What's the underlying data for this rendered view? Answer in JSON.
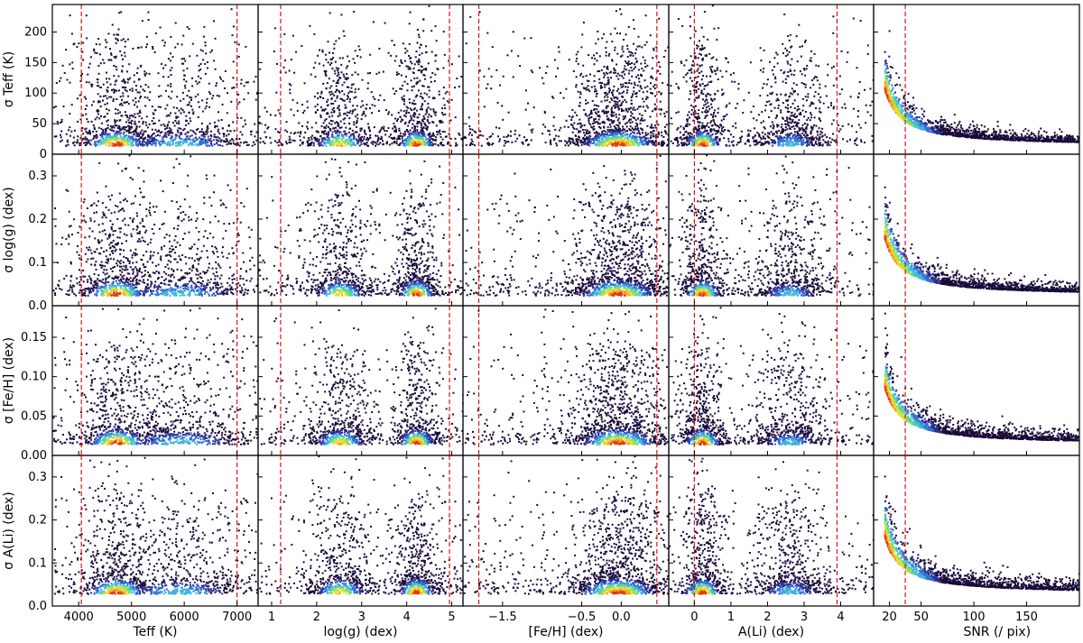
{
  "figure": {
    "description_type": "4x5 grid of 2D density (hexbin-style) scatter panels",
    "colormap": [
      "#1a0a3a",
      "#2b2f8f",
      "#2f6fd0",
      "#3fb0e0",
      "#50d0b0",
      "#9be04a",
      "#e8e030",
      "#f5a020",
      "#e03a10"
    ],
    "reference_line_color": "#e01010",
    "frame_color": "#000000"
  },
  "chart_data": {
    "type": "heatmap",
    "columns": [
      {
        "key": "teff",
        "xlabel": "Teff (K)",
        "xlim": [
          3500,
          7400
        ],
        "ticks": [
          4000,
          5000,
          6000,
          7000
        ],
        "tick_labels": [
          "4000",
          "5000",
          "6000",
          "7000"
        ],
        "ref_lines": [
          4050,
          7000
        ]
      },
      {
        "key": "logg",
        "xlabel": "log(g) (dex)",
        "xlim": [
          0.7,
          5.25
        ],
        "ticks": [
          1,
          2,
          3,
          4,
          5
        ],
        "tick_labels": [
          "1",
          "2",
          "3",
          "4",
          "5"
        ],
        "ref_lines": [
          1.2,
          4.95
        ]
      },
      {
        "key": "feh",
        "xlabel": "[Fe/H] (dex)",
        "xlim": [
          -2.0,
          0.6
        ],
        "ticks": [
          -1.5,
          -0.5,
          0.0
        ],
        "tick_labels": [
          "−1.5",
          "−0.5",
          "0.0"
        ],
        "ref_lines": [
          -1.8,
          0.45
        ]
      },
      {
        "key": "ali",
        "xlabel": "A(Li) (dex)",
        "xlim": [
          -0.7,
          4.9
        ],
        "ticks": [
          0,
          1,
          2,
          3,
          4
        ],
        "tick_labels": [
          "0",
          "1",
          "2",
          "3",
          "4"
        ],
        "ref_lines": [
          0.0,
          3.9
        ]
      },
      {
        "key": "snr",
        "xlabel": "SNR (/ pix)",
        "xlim": [
          5,
          200
        ],
        "ticks": [
          20,
          50,
          100,
          150
        ],
        "tick_labels": [
          "20",
          "50",
          "100",
          "150"
        ],
        "ref_lines": [
          35
        ]
      }
    ],
    "rows": [
      {
        "key": "sigma_teff",
        "ylabel": "σ Teff (K)",
        "ylim": [
          0,
          245
        ],
        "ticks": [
          0,
          50,
          100,
          150,
          200
        ],
        "tick_labels": [
          "0",
          "50",
          "100",
          "150",
          "200"
        ]
      },
      {
        "key": "sigma_logg",
        "ylabel": "σ log(g) (dex)",
        "ylim": [
          0,
          0.35
        ],
        "ticks": [
          0.0,
          0.1,
          0.2,
          0.3
        ],
        "tick_labels": [
          "0.0",
          "0.1",
          "0.2",
          "0.3"
        ]
      },
      {
        "key": "sigma_feh",
        "ylabel": "σ [Fe/H] (dex)",
        "ylim": [
          0,
          0.19
        ],
        "ticks": [
          0.0,
          0.05,
          0.1,
          0.15
        ],
        "tick_labels": [
          "0.00",
          "0.05",
          "0.10",
          "0.15"
        ]
      },
      {
        "key": "sigma_ali",
        "ylabel": "σ A(Li) (dex)",
        "ylim": [
          0,
          0.35
        ],
        "ticks": [
          0.0,
          0.1,
          0.2,
          0.3
        ],
        "tick_labels": [
          "0.0",
          "0.1",
          "0.2",
          "0.3"
        ]
      }
    ],
    "density_peaks": {
      "teff": [
        {
          "x": 4700,
          "w": 350,
          "amp": 1.0
        },
        {
          "x": 5900,
          "w": 700,
          "amp": 0.45
        }
      ],
      "logg": [
        {
          "x": 2.5,
          "w": 0.35,
          "amp": 0.8
        },
        {
          "x": 4.2,
          "w": 0.25,
          "amp": 1.0
        }
      ],
      "feh": [
        {
          "x": -0.05,
          "w": 0.3,
          "amp": 1.0
        }
      ],
      "ali": [
        {
          "x": 0.2,
          "w": 0.3,
          "amp": 1.0
        },
        {
          "x": 2.6,
          "w": 0.5,
          "amp": 0.45
        }
      ],
      "snr": [
        {
          "x": 25,
          "w": 10,
          "amp": 1.0
        }
      ]
    },
    "row_floor": [
      15,
      0.025,
      0.015,
      0.03
    ]
  }
}
